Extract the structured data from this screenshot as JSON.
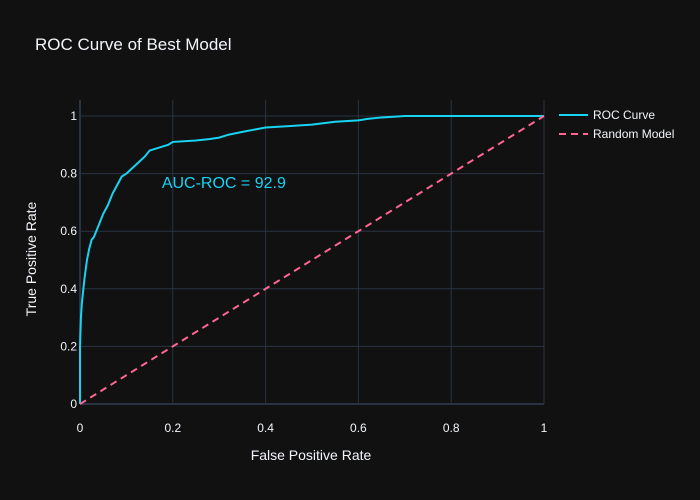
{
  "chart_data": {
    "type": "line",
    "title": "ROC Curve of Best Model",
    "xlabel": "False Positive Rate",
    "ylabel": "True Positive Rate",
    "xlim": [
      0,
      1
    ],
    "ylim": [
      0,
      1
    ],
    "x_ticks": [
      "0",
      "0.2",
      "0.4",
      "0.6",
      "0.8",
      "1"
    ],
    "y_ticks": [
      "0",
      "0.2",
      "0.4",
      "0.6",
      "0.8",
      "1"
    ],
    "grid": true,
    "legend_position": "top-right",
    "annotation": {
      "text": "AUC-ROC = 92.9",
      "x": 0.31,
      "y": 0.75,
      "color": "#19d3f3"
    },
    "series": [
      {
        "name": "ROC Curve",
        "color": "#19d3f3",
        "dash": "solid",
        "x": [
          0,
          0,
          0.002,
          0.004,
          0.006,
          0.01,
          0.015,
          0.02,
          0.025,
          0.03,
          0.04,
          0.05,
          0.06,
          0.07,
          0.08,
          0.09,
          0.1,
          0.12,
          0.14,
          0.15,
          0.17,
          0.19,
          0.2,
          0.25,
          0.28,
          0.3,
          0.32,
          0.35,
          0.4,
          0.45,
          0.5,
          0.55,
          0.6,
          0.62,
          0.65,
          0.68,
          0.7,
          0.8,
          0.9,
          0.95,
          1
        ],
        "y": [
          0,
          0.2,
          0.3,
          0.35,
          0.38,
          0.44,
          0.5,
          0.54,
          0.57,
          0.58,
          0.62,
          0.66,
          0.69,
          0.73,
          0.76,
          0.79,
          0.8,
          0.83,
          0.86,
          0.88,
          0.89,
          0.9,
          0.91,
          0.915,
          0.92,
          0.925,
          0.935,
          0.945,
          0.96,
          0.965,
          0.97,
          0.98,
          0.985,
          0.99,
          0.995,
          0.998,
          1,
          1,
          1,
          1,
          1
        ]
      },
      {
        "name": "Random Model",
        "color": "#ff6692",
        "dash": "dashed",
        "x": [
          0,
          1
        ],
        "y": [
          0,
          1
        ]
      }
    ]
  }
}
